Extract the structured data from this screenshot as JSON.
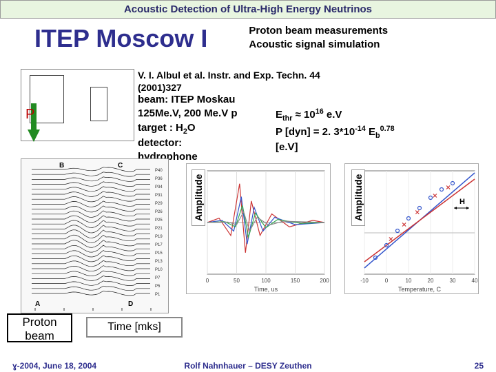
{
  "header": "Acoustic Detection of Ultra-High Energy Neutrinos",
  "title": "ITEP Moscow I",
  "subtitle_line1": "Proton beam measurements",
  "subtitle_line2": "Acoustic signal simulation",
  "citation": "V. I. Albul et al. Instr. and Exp. Techn. 44 (2001)327",
  "beam_l1": "beam:  ITEP Moskau",
  "beam_l2": "125Me.V, 200 Me.V p",
  "beam_l3_a": "target : H",
  "beam_l3_sub": "2",
  "beam_l3_b": "O",
  "beam_l4": "detector:",
  "beam_l5": "hydrophone",
  "formula_l1_a": "E",
  "formula_l1_sub": "thr",
  "formula_l1_b": " ≈ 10",
  "formula_l1_sup": "16",
  "formula_l1_c": " e.V",
  "formula_l2_a": "P [dyn] =  2. 3*10",
  "formula_l2_sup1": "-14",
  "formula_l2_b": " E",
  "formula_l2_sub": "b",
  "formula_l2_sup2": "0.78",
  "formula_l3": "[e.V]",
  "p_marker": "P",
  "proton_label_l1": "Proton",
  "proton_label_l2": "beam",
  "time_label": "Time  [mks]",
  "amplitude_label": "Amplitude",
  "chart1_xlabel": "Time, us",
  "chart2_xlabel": "Temperature, C",
  "chart2_H": "H",
  "footer_left_a": "ɣ-2004, June 18, 2004",
  "footer_center": "Rolf Nahnhauer – DESY Zeuthen",
  "footer_page": "25",
  "colors": {
    "header_bg": "#e8f5e0",
    "title_color": "#2e2e8e",
    "p_red": "#b00000",
    "arrow_green": "#228b22",
    "chart_red": "#cc3333",
    "chart_blue": "#3355cc",
    "chart_green": "#33aa55",
    "chart_gray": "#888888"
  },
  "waterfall": {
    "rows": 26,
    "row_labels_right": [
      "P40",
      "P36",
      "P34",
      "P31",
      "P29",
      "P26",
      "P25",
      "P21",
      "P19",
      "P17",
      "P15",
      "P13",
      "P10",
      "P7",
      "P5",
      "P1"
    ],
    "corner_labels": [
      "A",
      "B",
      "C",
      "D"
    ]
  },
  "chart1_data": {
    "xlim": [
      0,
      200
    ],
    "ylim": [
      -1.2,
      1.2
    ],
    "xticks": [
      0,
      50,
      100,
      150,
      200
    ],
    "series": [
      {
        "color": "#cc3333",
        "pts": [
          [
            0,
            0
          ],
          [
            20,
            0.1
          ],
          [
            40,
            -0.3
          ],
          [
            55,
            0.9
          ],
          [
            65,
            -0.7
          ],
          [
            75,
            0.5
          ],
          [
            90,
            -0.3
          ],
          [
            110,
            0.2
          ],
          [
            140,
            -0.1
          ],
          [
            180,
            0.05
          ],
          [
            200,
            0
          ]
        ]
      },
      {
        "color": "#3355cc",
        "pts": [
          [
            0,
            0
          ],
          [
            25,
            0.05
          ],
          [
            45,
            -0.2
          ],
          [
            58,
            0.6
          ],
          [
            68,
            -0.5
          ],
          [
            80,
            0.35
          ],
          [
            95,
            -0.2
          ],
          [
            115,
            0.12
          ],
          [
            150,
            -0.05
          ],
          [
            200,
            0
          ]
        ]
      },
      {
        "color": "#33aa55",
        "pts": [
          [
            0,
            0
          ],
          [
            30,
            0.02
          ],
          [
            48,
            -0.1
          ],
          [
            60,
            0.4
          ],
          [
            70,
            -0.35
          ],
          [
            82,
            0.22
          ],
          [
            100,
            -0.12
          ],
          [
            120,
            0.07
          ],
          [
            160,
            -0.02
          ],
          [
            200,
            0
          ]
        ]
      },
      {
        "color": "#888888",
        "pts": [
          [
            0,
            0
          ],
          [
            35,
            0.01
          ],
          [
            50,
            -0.05
          ],
          [
            62,
            0.25
          ],
          [
            72,
            -0.2
          ],
          [
            85,
            0.12
          ],
          [
            105,
            -0.06
          ],
          [
            130,
            0.03
          ],
          [
            200,
            0
          ]
        ]
      }
    ]
  },
  "chart2_data": {
    "xlim": [
      -10,
      40
    ],
    "ylim": [
      -1,
      1.5
    ],
    "xticks": [
      -10,
      0,
      10,
      20,
      30,
      40
    ],
    "scatter_circles": [
      [
        -5,
        -0.6
      ],
      [
        0,
        -0.3
      ],
      [
        5,
        0.05
      ],
      [
        10,
        0.35
      ],
      [
        15,
        0.6
      ],
      [
        20,
        0.85
      ],
      [
        25,
        1.05
      ],
      [
        30,
        1.2
      ]
    ],
    "scatter_x": [
      [
        2,
        -0.15
      ],
      [
        8,
        0.2
      ],
      [
        14,
        0.5
      ],
      [
        22,
        0.9
      ],
      [
        28,
        1.1
      ]
    ],
    "fit_blue": [
      [
        -10,
        -0.85
      ],
      [
        40,
        1.45
      ]
    ],
    "fit_red": [
      [
        -10,
        -0.7
      ],
      [
        40,
        1.3
      ]
    ],
    "h_arrow_y": 0.6
  }
}
